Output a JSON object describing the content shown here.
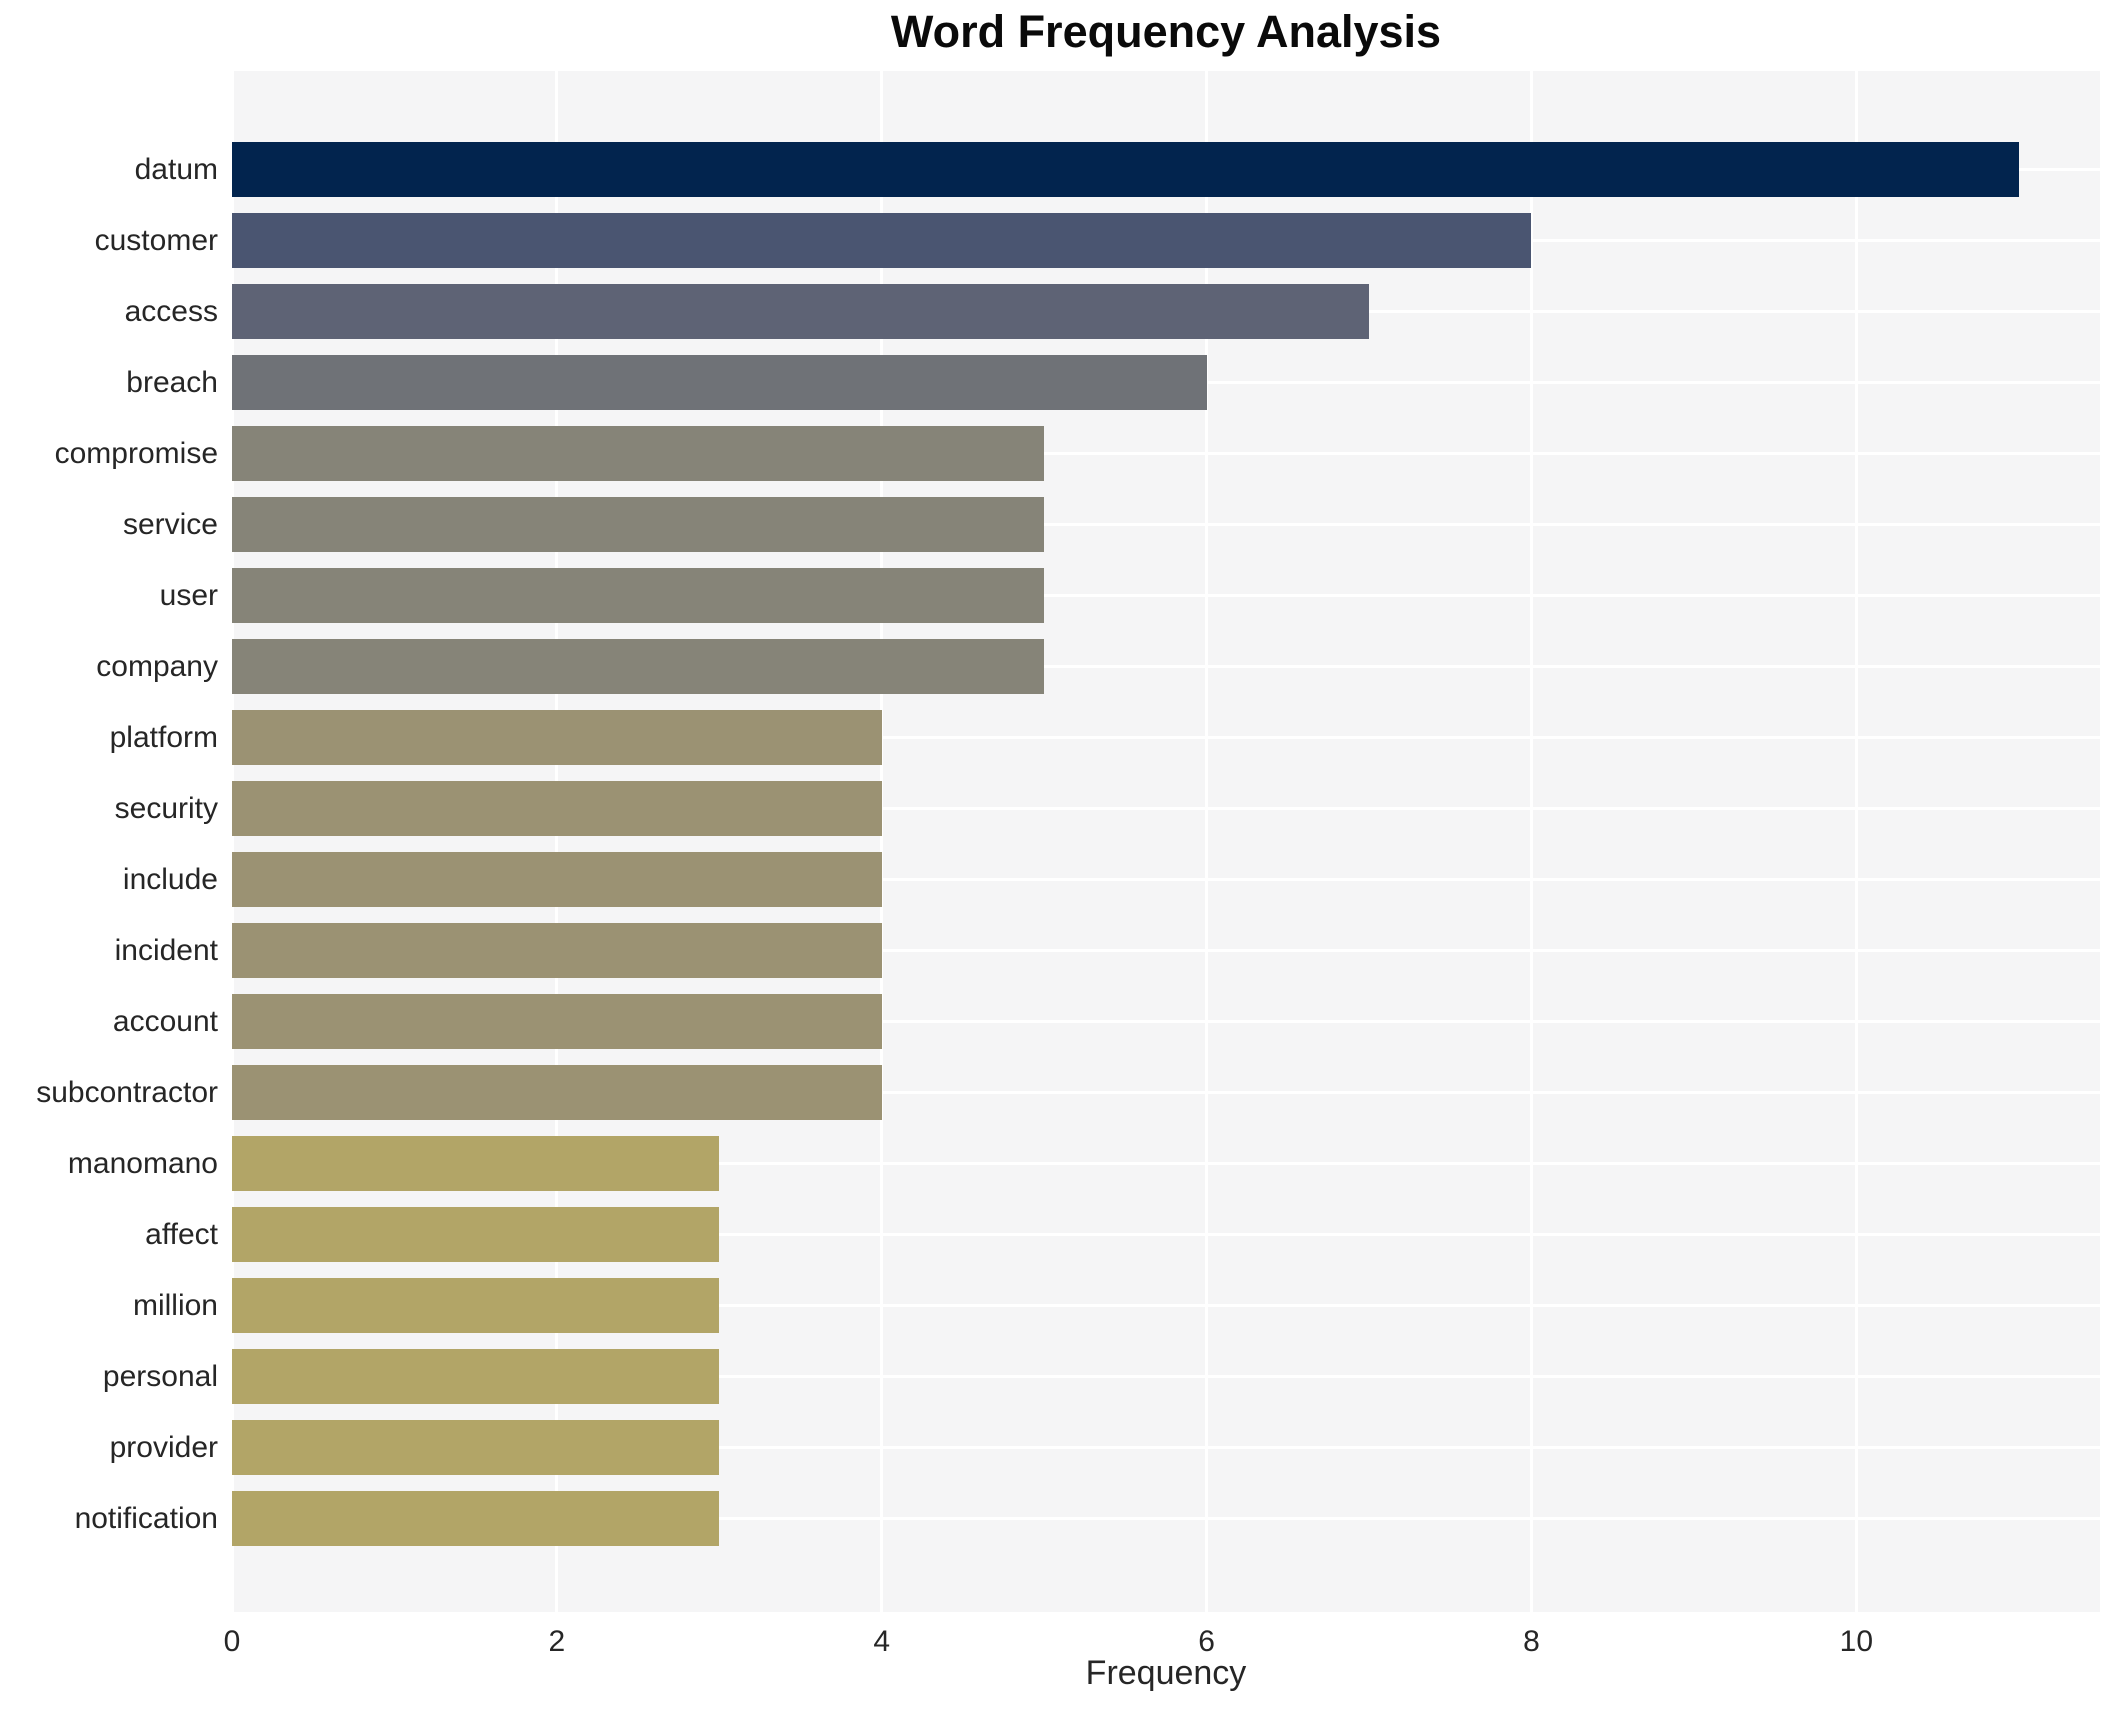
{
  "chart_data": {
    "type": "bar",
    "orientation": "horizontal",
    "title": "Word Frequency Analysis",
    "xlabel": "Frequency",
    "ylabel": "",
    "xlim": [
      0,
      11.5
    ],
    "xticks": [
      0,
      2,
      4,
      6,
      8,
      10
    ],
    "grid": true,
    "legend": false,
    "categories": [
      "datum",
      "customer",
      "access",
      "breach",
      "compromise",
      "service",
      "user",
      "company",
      "platform",
      "security",
      "include",
      "incident",
      "account",
      "subcontractor",
      "manomano",
      "affect",
      "million",
      "personal",
      "provider",
      "notification"
    ],
    "values": [
      11,
      8,
      7,
      6,
      5,
      5,
      5,
      5,
      4,
      4,
      4,
      4,
      4,
      4,
      3,
      3,
      3,
      3,
      3,
      3
    ],
    "bar_colors": [
      "#02244e",
      "#4a5571",
      "#5e6375",
      "#6f7277",
      "#868478",
      "#868478",
      "#868478",
      "#868478",
      "#9b9273",
      "#9b9273",
      "#9b9273",
      "#9b9273",
      "#9b9273",
      "#9b9273",
      "#b2a567",
      "#b2a567",
      "#b2a567",
      "#b2a567",
      "#b2a567",
      "#b2a567"
    ],
    "plot_background": "#f5f5f6",
    "grid_color": "#ffffff",
    "text_color": "#262626"
  }
}
